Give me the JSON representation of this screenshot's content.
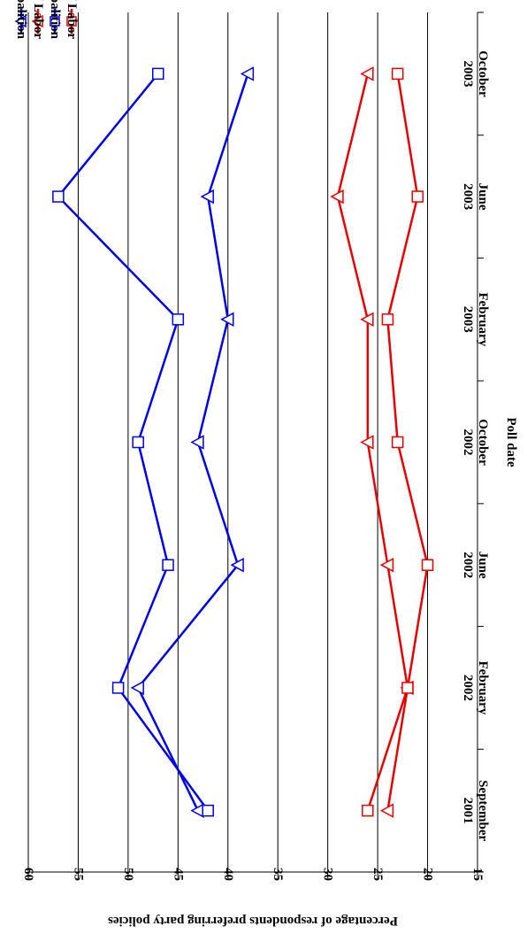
{
  "chart_data": {
    "type": "line",
    "orientation": "rotated-90-clockwise",
    "categories": [
      "September\n2001",
      "February\n2002",
      "June\n2002",
      "October\n2002",
      "February\n2003",
      "June\n2003",
      "October\n2003"
    ],
    "xlabel": "Poll date",
    "ylabel": "Percentage of respondents preferring party policies",
    "ylim": [
      15,
      60
    ],
    "yticks": [
      15,
      20,
      25,
      30,
      35,
      40,
      45,
      50,
      55,
      60
    ],
    "grid": true,
    "legend_placement": "top-left",
    "series": [
      {
        "name": "Immigration / Coalition",
        "color": "#0000e6",
        "marker": "triangle",
        "values": [
          43,
          49,
          39,
          43,
          40,
          42,
          38
        ]
      },
      {
        "name": "Immigration / Labor",
        "color": "#e60000",
        "marker": "triangle",
        "values": [
          24,
          22,
          24,
          26,
          26,
          29,
          26
        ]
      },
      {
        "name": "Defence / Coalition",
        "color": "#0000e6",
        "marker": "square",
        "values": [
          42,
          51,
          46,
          49,
          45,
          57,
          47
        ]
      },
      {
        "name": "Defence / Labor",
        "color": "#e60000",
        "marker": "square",
        "values": [
          26,
          22,
          20,
          23,
          24,
          21,
          23
        ]
      }
    ]
  }
}
